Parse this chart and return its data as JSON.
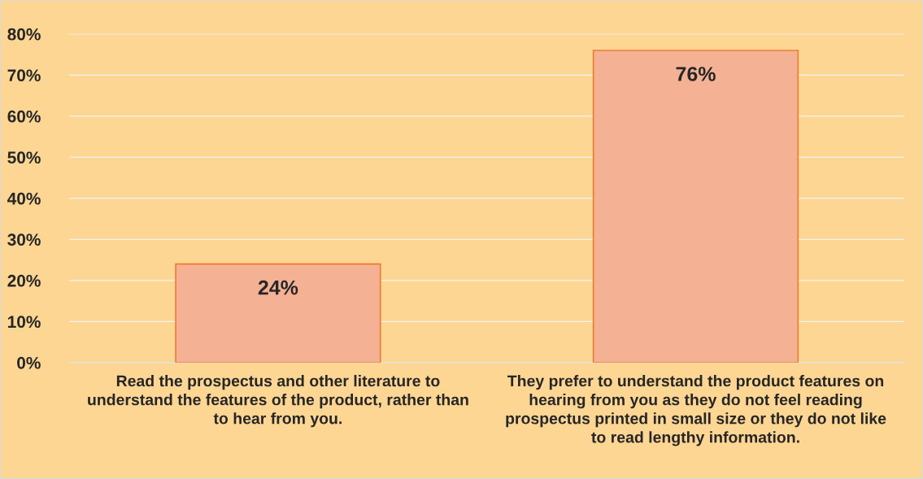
{
  "chart_data": {
    "type": "bar",
    "categories": [
      "Read the prospectus and other literature to understand the features of the product, rather than to hear from you.",
      "They prefer to understand the product features on hearing from you as they do not feel reading prospectus printed in small size or they do not like to read lengthy information."
    ],
    "values": [
      24,
      76
    ],
    "value_labels": [
      "24%",
      "76%"
    ],
    "color": "#f5b193",
    "ylim": [
      0,
      80
    ],
    "yticks": [
      {
        "value": 0,
        "label": "0%"
      },
      {
        "value": 10,
        "label": "10%"
      },
      {
        "value": 20,
        "label": "20%"
      },
      {
        "value": 30,
        "label": "30%"
      },
      {
        "value": 40,
        "label": "40%"
      },
      {
        "value": 50,
        "label": "50%"
      },
      {
        "value": 60,
        "label": "60%"
      },
      {
        "value": 70,
        "label": "70%"
      },
      {
        "value": 80,
        "label": "80%"
      }
    ],
    "grid": "y",
    "legend": false
  }
}
